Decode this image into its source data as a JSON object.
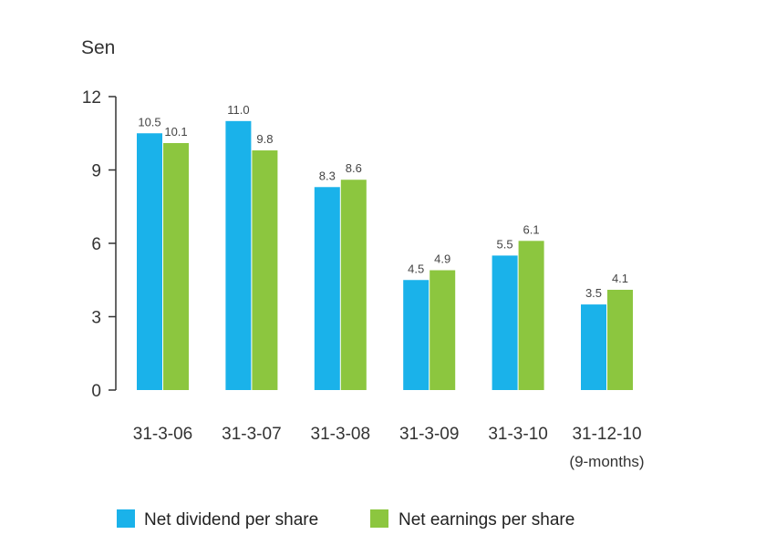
{
  "chart_data": {
    "type": "bar",
    "unit_label": "Sen",
    "categories": [
      "31-3-06",
      "31-3-07",
      "31-3-08",
      "31-3-09",
      "31-3-10",
      "31-12-10"
    ],
    "category_sublabels": [
      "",
      "",
      "",
      "",
      "",
      "(9-months)"
    ],
    "series": [
      {
        "name": "Net dividend per share",
        "color": "#1ab2ea",
        "values": [
          10.5,
          11.0,
          8.3,
          4.5,
          5.5,
          3.5
        ],
        "labels": [
          "10.5",
          "11.0",
          "8.3",
          "4.5",
          "5.5",
          "3.5"
        ]
      },
      {
        "name": "Net earnings per share",
        "color": "#8cc63f",
        "values": [
          10.1,
          9.8,
          8.6,
          4.9,
          6.1,
          4.1
        ],
        "labels": [
          "10.1",
          "9.8",
          "8.6",
          "4.9",
          "6.1",
          "4.1"
        ]
      }
    ],
    "ylim": [
      0,
      12
    ],
    "yticks": [
      0,
      3,
      6,
      9,
      12
    ],
    "ytick_labels": [
      "0",
      "3",
      "6",
      "9",
      "12"
    ],
    "legend_position": "bottom",
    "grid": false
  }
}
